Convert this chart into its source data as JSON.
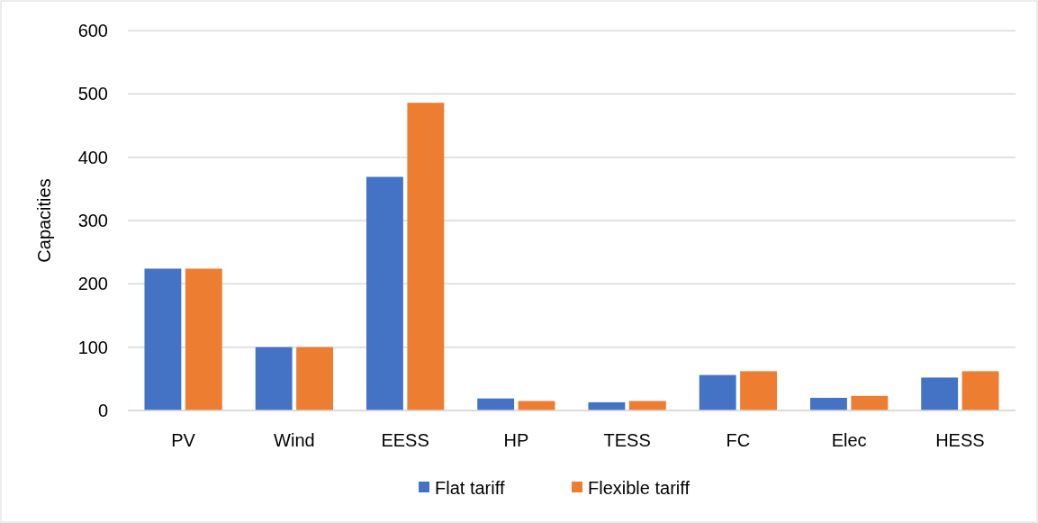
{
  "chart_data": {
    "type": "bar",
    "ylabel": "Capacities",
    "categories": [
      "PV",
      "Wind",
      "EESS",
      "HP",
      "TESS",
      "FC",
      "Elec",
      "HESS"
    ],
    "series": [
      {
        "name": "Flat tariff",
        "color": "#4472c4",
        "values": [
          224,
          100,
          369,
          19,
          13,
          56,
          20,
          52
        ]
      },
      {
        "name": "Flexible tariff",
        "color": "#ed7d31",
        "values": [
          224,
          100,
          486,
          15,
          15,
          62,
          23,
          62
        ]
      }
    ],
    "ylim": [
      0,
      600
    ],
    "yticks": [
      0,
      100,
      200,
      300,
      400,
      500,
      600
    ],
    "grid": "y",
    "legend": "bottom"
  }
}
